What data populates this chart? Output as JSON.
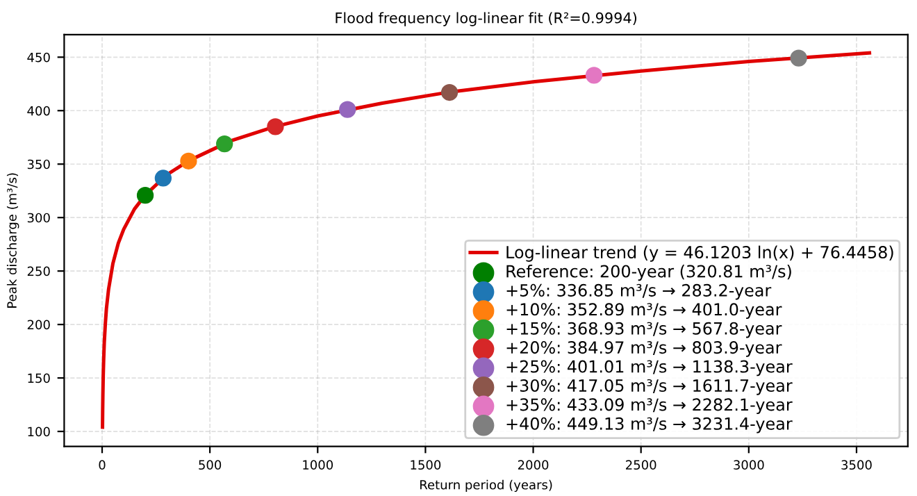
{
  "chart_data": {
    "type": "scatter",
    "title": "Flood frequency log-linear fit (R²=0.9994)",
    "xlabel": "Return period (years)",
    "ylabel": "Peak discharge (m³/s)",
    "xlim": [
      -176,
      3738
    ],
    "ylim": [
      86,
      471
    ],
    "xticks": [
      0,
      500,
      1000,
      1500,
      2000,
      2500,
      3000,
      3500
    ],
    "yticks": [
      100,
      150,
      200,
      250,
      300,
      350,
      400,
      450
    ],
    "grid": true,
    "legend": "bottom right",
    "series": [
      {
        "type": "line",
        "name": "Log-linear trend (y = 46.1203 ln(x) + 76.4458)",
        "color": "#e00000",
        "line_style": "solid",
        "marker": "none",
        "x": [
          1.8,
          2.5,
          3.5,
          5,
          7,
          10,
          15,
          20,
          30,
          50,
          75,
          100,
          150,
          200,
          300,
          400,
          600,
          800,
          1000,
          1300,
          1600,
          2000,
          2500,
          3000,
          3560
        ],
        "values": [
          104,
          119,
          134,
          151,
          166,
          183,
          201,
          215,
          233,
          257,
          276,
          289,
          308,
          321,
          340,
          353,
          372,
          385,
          395,
          407,
          417,
          427,
          437,
          446,
          454
        ]
      },
      {
        "name": "Reference: 200-year (320.81 m³/s)",
        "color": "#007f00",
        "marker": "circle",
        "x": [
          200
        ],
        "values": [
          320.81
        ]
      },
      {
        "name": "+5%: 336.85 m³/s → 283.2-year",
        "color": "#1f77b4",
        "marker": "circle",
        "x": [
          283.2
        ],
        "values": [
          336.85
        ]
      },
      {
        "name": "+10%: 352.89 m³/s → 401.0-year",
        "color": "#ff7f0e",
        "marker": "circle",
        "x": [
          401.0
        ],
        "values": [
          352.89
        ]
      },
      {
        "name": "+15%: 368.93 m³/s → 567.8-year",
        "color": "#2ca02c",
        "marker": "circle",
        "x": [
          567.8
        ],
        "values": [
          368.93
        ]
      },
      {
        "name": "+20%: 384.97 m³/s → 803.9-year",
        "color": "#d62728",
        "marker": "circle",
        "x": [
          803.9
        ],
        "values": [
          384.97
        ]
      },
      {
        "name": "+25%: 401.01 m³/s → 1138.3-year",
        "color": "#9467bd",
        "marker": "circle",
        "x": [
          1138.3
        ],
        "values": [
          401.01
        ]
      },
      {
        "name": "+30%: 417.05 m³/s → 1611.7-year",
        "color": "#8c564b",
        "marker": "circle",
        "x": [
          1611.7
        ],
        "values": [
          417.05
        ]
      },
      {
        "name": "+35%: 433.09 m³/s → 2282.1-year",
        "color": "#e377c2",
        "marker": "circle",
        "x": [
          2282.1
        ],
        "values": [
          433.09
        ]
      },
      {
        "name": "+40%: 449.13 m³/s → 3231.4-year",
        "color": "#7f7f7f",
        "marker": "circle",
        "x": [
          3231.4
        ],
        "values": [
          449.13
        ]
      }
    ]
  }
}
